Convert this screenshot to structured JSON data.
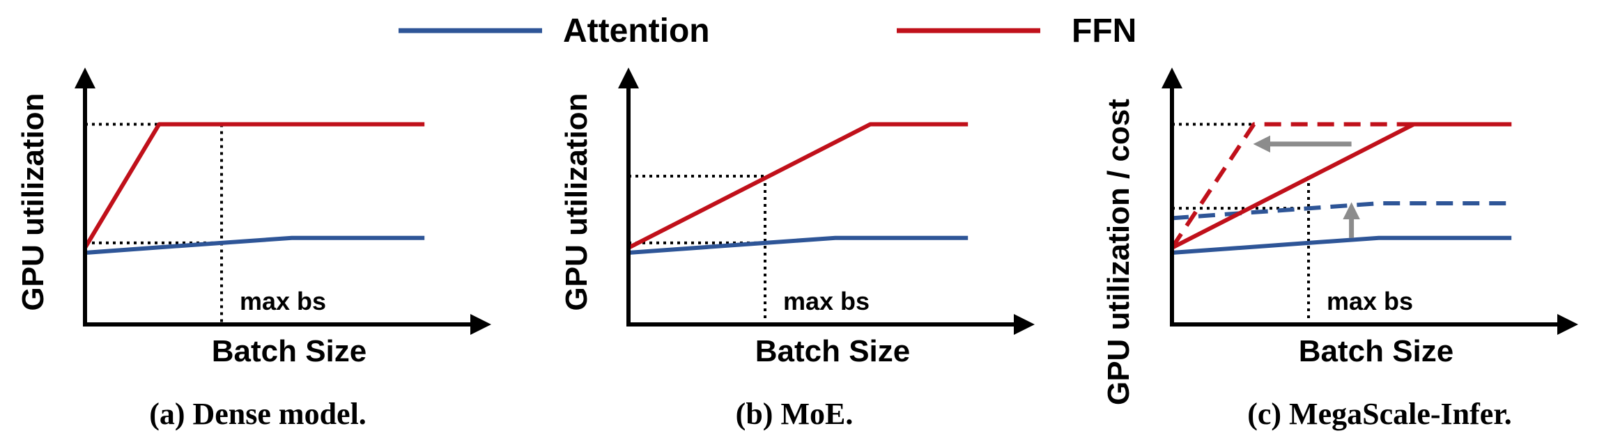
{
  "legend": {
    "attention": {
      "label": "Attention",
      "color": "#2e5597"
    },
    "ffn": {
      "label": "FFN",
      "color": "#c0101a"
    }
  },
  "colors": {
    "axis": "#000000",
    "guide": "#000000",
    "shift_arrow": "#8c8c8c"
  },
  "panels": [
    {
      "id": "a",
      "caption": "(a) Dense model.",
      "xlabel": "Batch Size",
      "ylabel": "GPU utilization",
      "max_bs_label": "max bs",
      "chart_data": {
        "type": "line",
        "xlim": [
          0,
          1
        ],
        "ylim": [
          0,
          1
        ],
        "max_bs": 0.35,
        "series": [
          {
            "name": "Attention",
            "style": "solid",
            "points": [
              [
                0,
                0.29
              ],
              [
                0.35,
                0.33
              ],
              [
                0.53,
                0.35
              ],
              [
                0.87,
                0.35
              ]
            ]
          },
          {
            "name": "FFN",
            "style": "solid",
            "points": [
              [
                0,
                0.31
              ],
              [
                0.19,
                0.81
              ],
              [
                0.87,
                0.81
              ]
            ]
          }
        ],
        "guides": [
          {
            "from": [
              0,
              0.81
            ],
            "to": [
              0.35,
              0.81
            ]
          },
          {
            "from": [
              0,
              0.33
            ],
            "to": [
              0.35,
              0.33
            ]
          },
          {
            "from": [
              0.35,
              0.81
            ],
            "to": [
              0.35,
              0
            ]
          }
        ],
        "arrows": []
      }
    },
    {
      "id": "b",
      "caption": "(b) MoE.",
      "xlabel": "Batch Size",
      "ylabel": "GPU utilization",
      "max_bs_label": "max bs",
      "chart_data": {
        "type": "line",
        "xlim": [
          0,
          1
        ],
        "ylim": [
          0,
          1
        ],
        "max_bs": 0.35,
        "series": [
          {
            "name": "Attention",
            "style": "solid",
            "points": [
              [
                0,
                0.29
              ],
              [
                0.35,
                0.33
              ],
              [
                0.53,
                0.35
              ],
              [
                0.87,
                0.35
              ]
            ]
          },
          {
            "name": "FFN",
            "style": "solid",
            "points": [
              [
                0,
                0.31
              ],
              [
                0.62,
                0.81
              ],
              [
                0.87,
                0.81
              ]
            ]
          }
        ],
        "guides": [
          {
            "from": [
              0,
              0.6
            ],
            "to": [
              0.35,
              0.6
            ]
          },
          {
            "from": [
              0,
              0.33
            ],
            "to": [
              0.35,
              0.33
            ]
          },
          {
            "from": [
              0.35,
              0.6
            ],
            "to": [
              0.35,
              0
            ]
          }
        ],
        "arrows": []
      }
    },
    {
      "id": "c",
      "caption": "(c) MegaScale-Infer.",
      "xlabel": "Batch Size",
      "ylabel": "GPU utilization / cost",
      "max_bs_label": "max bs",
      "chart_data": {
        "type": "line",
        "xlim": [
          0,
          1
        ],
        "ylim": [
          0,
          1
        ],
        "max_bs": 0.35,
        "series": [
          {
            "name": "Attention",
            "style": "solid",
            "points": [
              [
                0,
                0.29
              ],
              [
                0.35,
                0.33
              ],
              [
                0.53,
                0.35
              ],
              [
                0.87,
                0.35
              ]
            ]
          },
          {
            "name": "Attention",
            "style": "dashed",
            "points": [
              [
                0,
                0.43
              ],
              [
                0.53,
                0.49
              ],
              [
                0.87,
                0.49
              ]
            ]
          },
          {
            "name": "FFN",
            "style": "solid",
            "points": [
              [
                0,
                0.31
              ],
              [
                0.62,
                0.81
              ],
              [
                0.87,
                0.81
              ]
            ]
          },
          {
            "name": "FFN",
            "style": "dashed",
            "points": [
              [
                0,
                0.31
              ],
              [
                0.21,
                0.81
              ],
              [
                0.87,
                0.81
              ]
            ]
          }
        ],
        "guides": [
          {
            "from": [
              0,
              0.81
            ],
            "to": [
              0.21,
              0.81
            ]
          },
          {
            "from": [
              0,
              0.47
            ],
            "to": [
              0.35,
              0.47
            ]
          },
          {
            "from": [
              0.35,
              0.6
            ],
            "to": [
              0.35,
              0
            ]
          }
        ],
        "arrows": [
          {
            "from": [
              0.46,
              0.73
            ],
            "to": [
              0.23,
              0.73
            ]
          },
          {
            "from": [
              0.46,
              0.35
            ],
            "to": [
              0.46,
              0.46
            ]
          }
        ]
      }
    }
  ]
}
